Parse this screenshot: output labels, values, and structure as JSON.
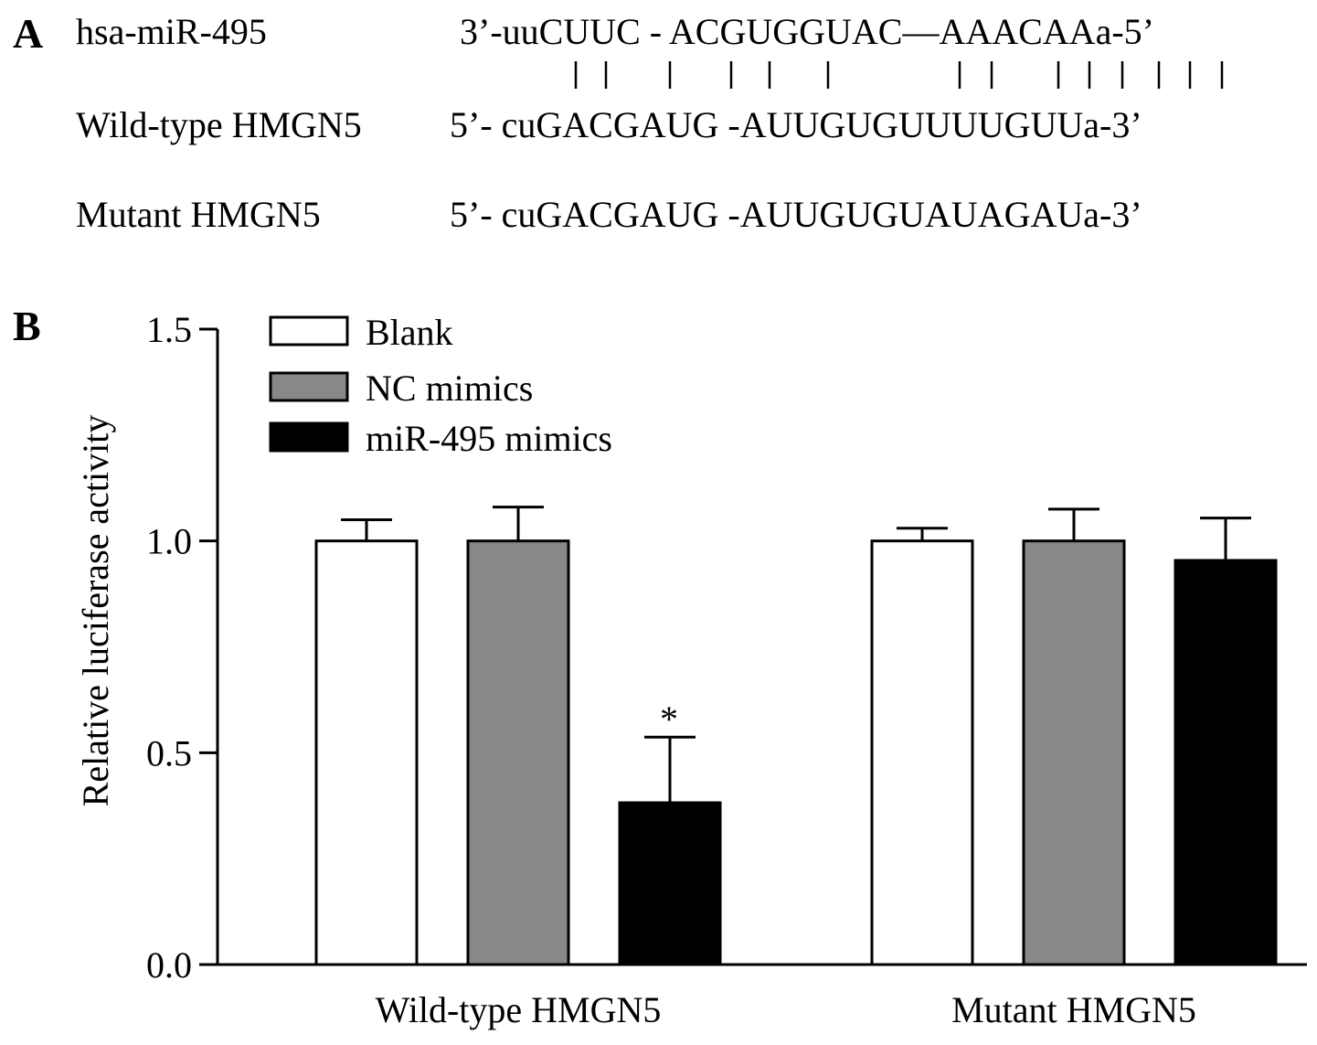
{
  "panel_a": {
    "label": "A",
    "rows": [
      {
        "name": "hsa-miR-495",
        "sequence": "3’-uuCUUC - ACGUGGUAC—AAACAAa-5’"
      },
      {
        "name": "Wild-type HMGN5",
        "sequence": "5’- cuGACGAUG -AUUGUGUUUUGUUa-3’"
      },
      {
        "name": "Mutant HMGN5",
        "sequence": "5’- cuGACGAUG -AUUGUGUAUAGAUa-3’"
      }
    ]
  },
  "panel_b_label": "B",
  "chart_data": {
    "type": "bar",
    "ylabel": "Relative luciferase activity",
    "categories": [
      "Wild-type HMGN5",
      "Mutant HMGN5"
    ],
    "series": [
      {
        "name": "Blank",
        "color": "#ffffff",
        "values": [
          1.0,
          1.0
        ],
        "errors": [
          0.05,
          0.03
        ]
      },
      {
        "name": "NC mimics",
        "color": "#888888",
        "values": [
          1.0,
          1.0
        ],
        "errors": [
          0.08,
          0.075
        ]
      },
      {
        "name": "miR-495 mimics",
        "color": "#000000",
        "values": [
          0.382,
          0.954
        ],
        "errors": [
          0.155,
          0.1
        ]
      }
    ],
    "annotation": "*",
    "ylim": [
      0,
      1.5
    ],
    "yticks": [
      {
        "value": 0,
        "label": "0.0"
      },
      {
        "value": 0.5,
        "label": "0.5"
      },
      {
        "value": 1,
        "label": "1.0"
      },
      {
        "value": 1.5,
        "label": "1.5"
      }
    ],
    "legend": "upper left"
  }
}
